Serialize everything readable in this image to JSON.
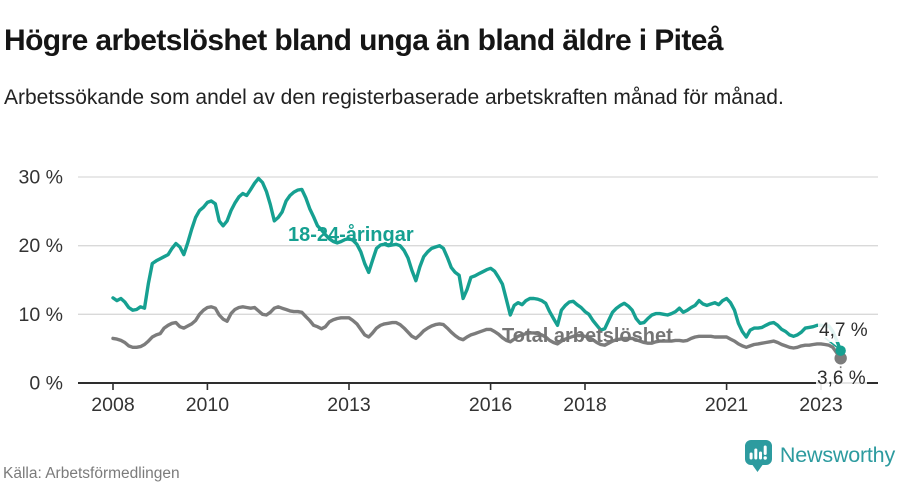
{
  "header": {
    "title": "Högre arbetslöshet bland unga än bland äldre i Piteå",
    "subtitle": "Arbetssökande som andel av den registerbaserade arbetskraften månad för månad."
  },
  "footer": {
    "source": "Källa: Arbetsförmedlingen",
    "brand": "Newsworthy",
    "brand_icon": "bar-chart-speech-bubble-icon"
  },
  "colors": {
    "young": "#16a091",
    "total": "#7c7c7c",
    "grid": "#d9d9d9",
    "axis": "#2e2e2e",
    "tick_text": "#333333",
    "end_label": "#2d2d2d",
    "brand": "#2d9b9f"
  },
  "chart_data": {
    "type": "line",
    "title": "Högre arbetslöshet bland unga än bland äldre i Piteå",
    "subtitle": "Arbetssökande som andel av den registerbaserade arbetskraften månad för månad.",
    "x_unit": "month",
    "x_start": "2008-01",
    "x_end": "2023-06",
    "xticks": [
      2008,
      2010,
      2013,
      2016,
      2018,
      2021,
      2023
    ],
    "xtick_labels": [
      "2008",
      "2010",
      "2013",
      "2016",
      "2018",
      "2021",
      "2023"
    ],
    "yticks": [
      0,
      10,
      20,
      30
    ],
    "ytick_labels": [
      "0 %",
      "10 %",
      "20 %",
      "30 %"
    ],
    "ylim": [
      0,
      32
    ],
    "grid": true,
    "legend_position": "inline-labels",
    "series": [
      {
        "name": "18-24-åringar",
        "label_text": "18-24-åringar",
        "end_label": "4,7 %",
        "end_value": 4.7,
        "color_key": "young",
        "values": [
          12.4,
          12.0,
          12.3,
          11.8,
          11.0,
          10.6,
          10.7,
          11.1,
          10.9,
          14.5,
          17.4,
          17.8,
          18.1,
          18.4,
          18.7,
          19.6,
          20.3,
          19.8,
          18.7,
          20.4,
          22.4,
          24.1,
          25.1,
          25.6,
          26.3,
          26.5,
          26.1,
          23.6,
          22.9,
          23.6,
          25.1,
          26.2,
          27.1,
          27.6,
          27.3,
          28.2,
          29.1,
          29.8,
          29.2,
          27.9,
          26.0,
          23.6,
          24.1,
          24.9,
          26.5,
          27.3,
          27.8,
          28.1,
          28.2,
          27.0,
          25.4,
          24.2,
          22.9,
          22.3,
          21.6,
          21.0,
          20.6,
          20.4,
          20.6,
          20.9,
          21.0,
          20.8,
          20.2,
          19.1,
          17.4,
          16.1,
          17.9,
          19.6,
          20.1,
          20.2,
          20.0,
          20.1,
          20.2,
          20.0,
          19.3,
          18.2,
          16.4,
          14.9,
          16.9,
          18.4,
          19.1,
          19.6,
          19.8,
          20.0,
          19.6,
          18.3,
          16.8,
          16.1,
          15.7,
          12.3,
          13.6,
          15.4,
          15.6,
          15.9,
          16.2,
          16.5,
          16.7,
          16.3,
          15.4,
          14.4,
          12.2,
          9.9,
          11.3,
          11.7,
          11.4,
          12.0,
          12.3,
          12.3,
          12.2,
          12.0,
          11.6,
          10.4,
          9.4,
          8.4,
          10.6,
          11.3,
          11.8,
          11.9,
          11.4,
          11.0,
          10.4,
          10.0,
          9.1,
          8.4,
          7.7,
          7.9,
          9.1,
          10.3,
          10.9,
          11.3,
          11.6,
          11.2,
          10.6,
          9.4,
          8.7,
          8.8,
          9.4,
          9.9,
          10.1,
          10.1,
          10.0,
          9.9,
          10.1,
          10.4,
          10.9,
          10.3,
          10.6,
          11.0,
          11.3,
          12.0,
          11.5,
          11.3,
          11.5,
          11.7,
          11.4,
          12.0,
          12.3,
          11.7,
          10.6,
          8.7,
          7.5,
          6.7,
          7.7,
          8.0,
          8.0,
          8.1,
          8.4,
          8.7,
          8.8,
          8.4,
          7.8,
          7.5,
          7.0,
          6.8,
          7.0,
          7.4,
          8.0,
          8.1,
          8.2,
          8.4,
          8.4,
          8.3,
          8.3,
          7.5,
          6.2,
          4.7
        ]
      },
      {
        "name": "Total arbetslöshet",
        "label_text": "Total arbetslöshet",
        "end_label": "3,6 %",
        "end_value": 3.6,
        "color_key": "total",
        "values": [
          6.5,
          6.4,
          6.2,
          5.9,
          5.4,
          5.2,
          5.2,
          5.3,
          5.6,
          6.1,
          6.7,
          7.0,
          7.2,
          8.0,
          8.4,
          8.7,
          8.8,
          8.2,
          8.0,
          8.3,
          8.6,
          9.1,
          10.0,
          10.6,
          11.0,
          11.1,
          10.9,
          9.9,
          9.3,
          9.0,
          10.1,
          10.7,
          11.0,
          11.1,
          11.0,
          10.9,
          11.0,
          10.5,
          10.0,
          9.9,
          10.3,
          10.9,
          11.1,
          10.9,
          10.7,
          10.5,
          10.4,
          10.4,
          10.3,
          9.7,
          9.1,
          8.4,
          8.2,
          7.9,
          8.2,
          8.9,
          9.2,
          9.4,
          9.5,
          9.5,
          9.5,
          9.1,
          8.6,
          7.8,
          7.0,
          6.7,
          7.3,
          8.0,
          8.4,
          8.6,
          8.7,
          8.8,
          8.8,
          8.5,
          8.0,
          7.4,
          6.8,
          6.5,
          7.0,
          7.6,
          8.0,
          8.3,
          8.5,
          8.6,
          8.5,
          8.0,
          7.4,
          6.9,
          6.5,
          6.3,
          6.7,
          7.0,
          7.2,
          7.4,
          7.6,
          7.8,
          7.8,
          7.5,
          7.1,
          6.6,
          6.2,
          6.0,
          6.4,
          6.8,
          7.0,
          7.2,
          7.3,
          7.3,
          7.2,
          7.0,
          6.7,
          6.2,
          5.9,
          5.7,
          6.1,
          6.4,
          6.6,
          6.8,
          6.9,
          6.9,
          6.8,
          6.6,
          6.3,
          5.9,
          5.6,
          5.5,
          5.8,
          6.1,
          6.3,
          6.4,
          6.5,
          6.5,
          6.5,
          6.3,
          6.1,
          5.9,
          5.8,
          5.8,
          6.0,
          6.1,
          6.1,
          6.1,
          6.1,
          6.2,
          6.2,
          6.1,
          6.2,
          6.5,
          6.7,
          6.8,
          6.8,
          6.8,
          6.8,
          6.7,
          6.7,
          6.7,
          6.7,
          6.4,
          6.1,
          5.7,
          5.4,
          5.2,
          5.4,
          5.6,
          5.7,
          5.8,
          5.9,
          6.0,
          6.1,
          5.9,
          5.6,
          5.4,
          5.2,
          5.1,
          5.2,
          5.4,
          5.5,
          5.5,
          5.6,
          5.7,
          5.7,
          5.6,
          5.5,
          5.2,
          4.4,
          3.6
        ]
      }
    ]
  }
}
